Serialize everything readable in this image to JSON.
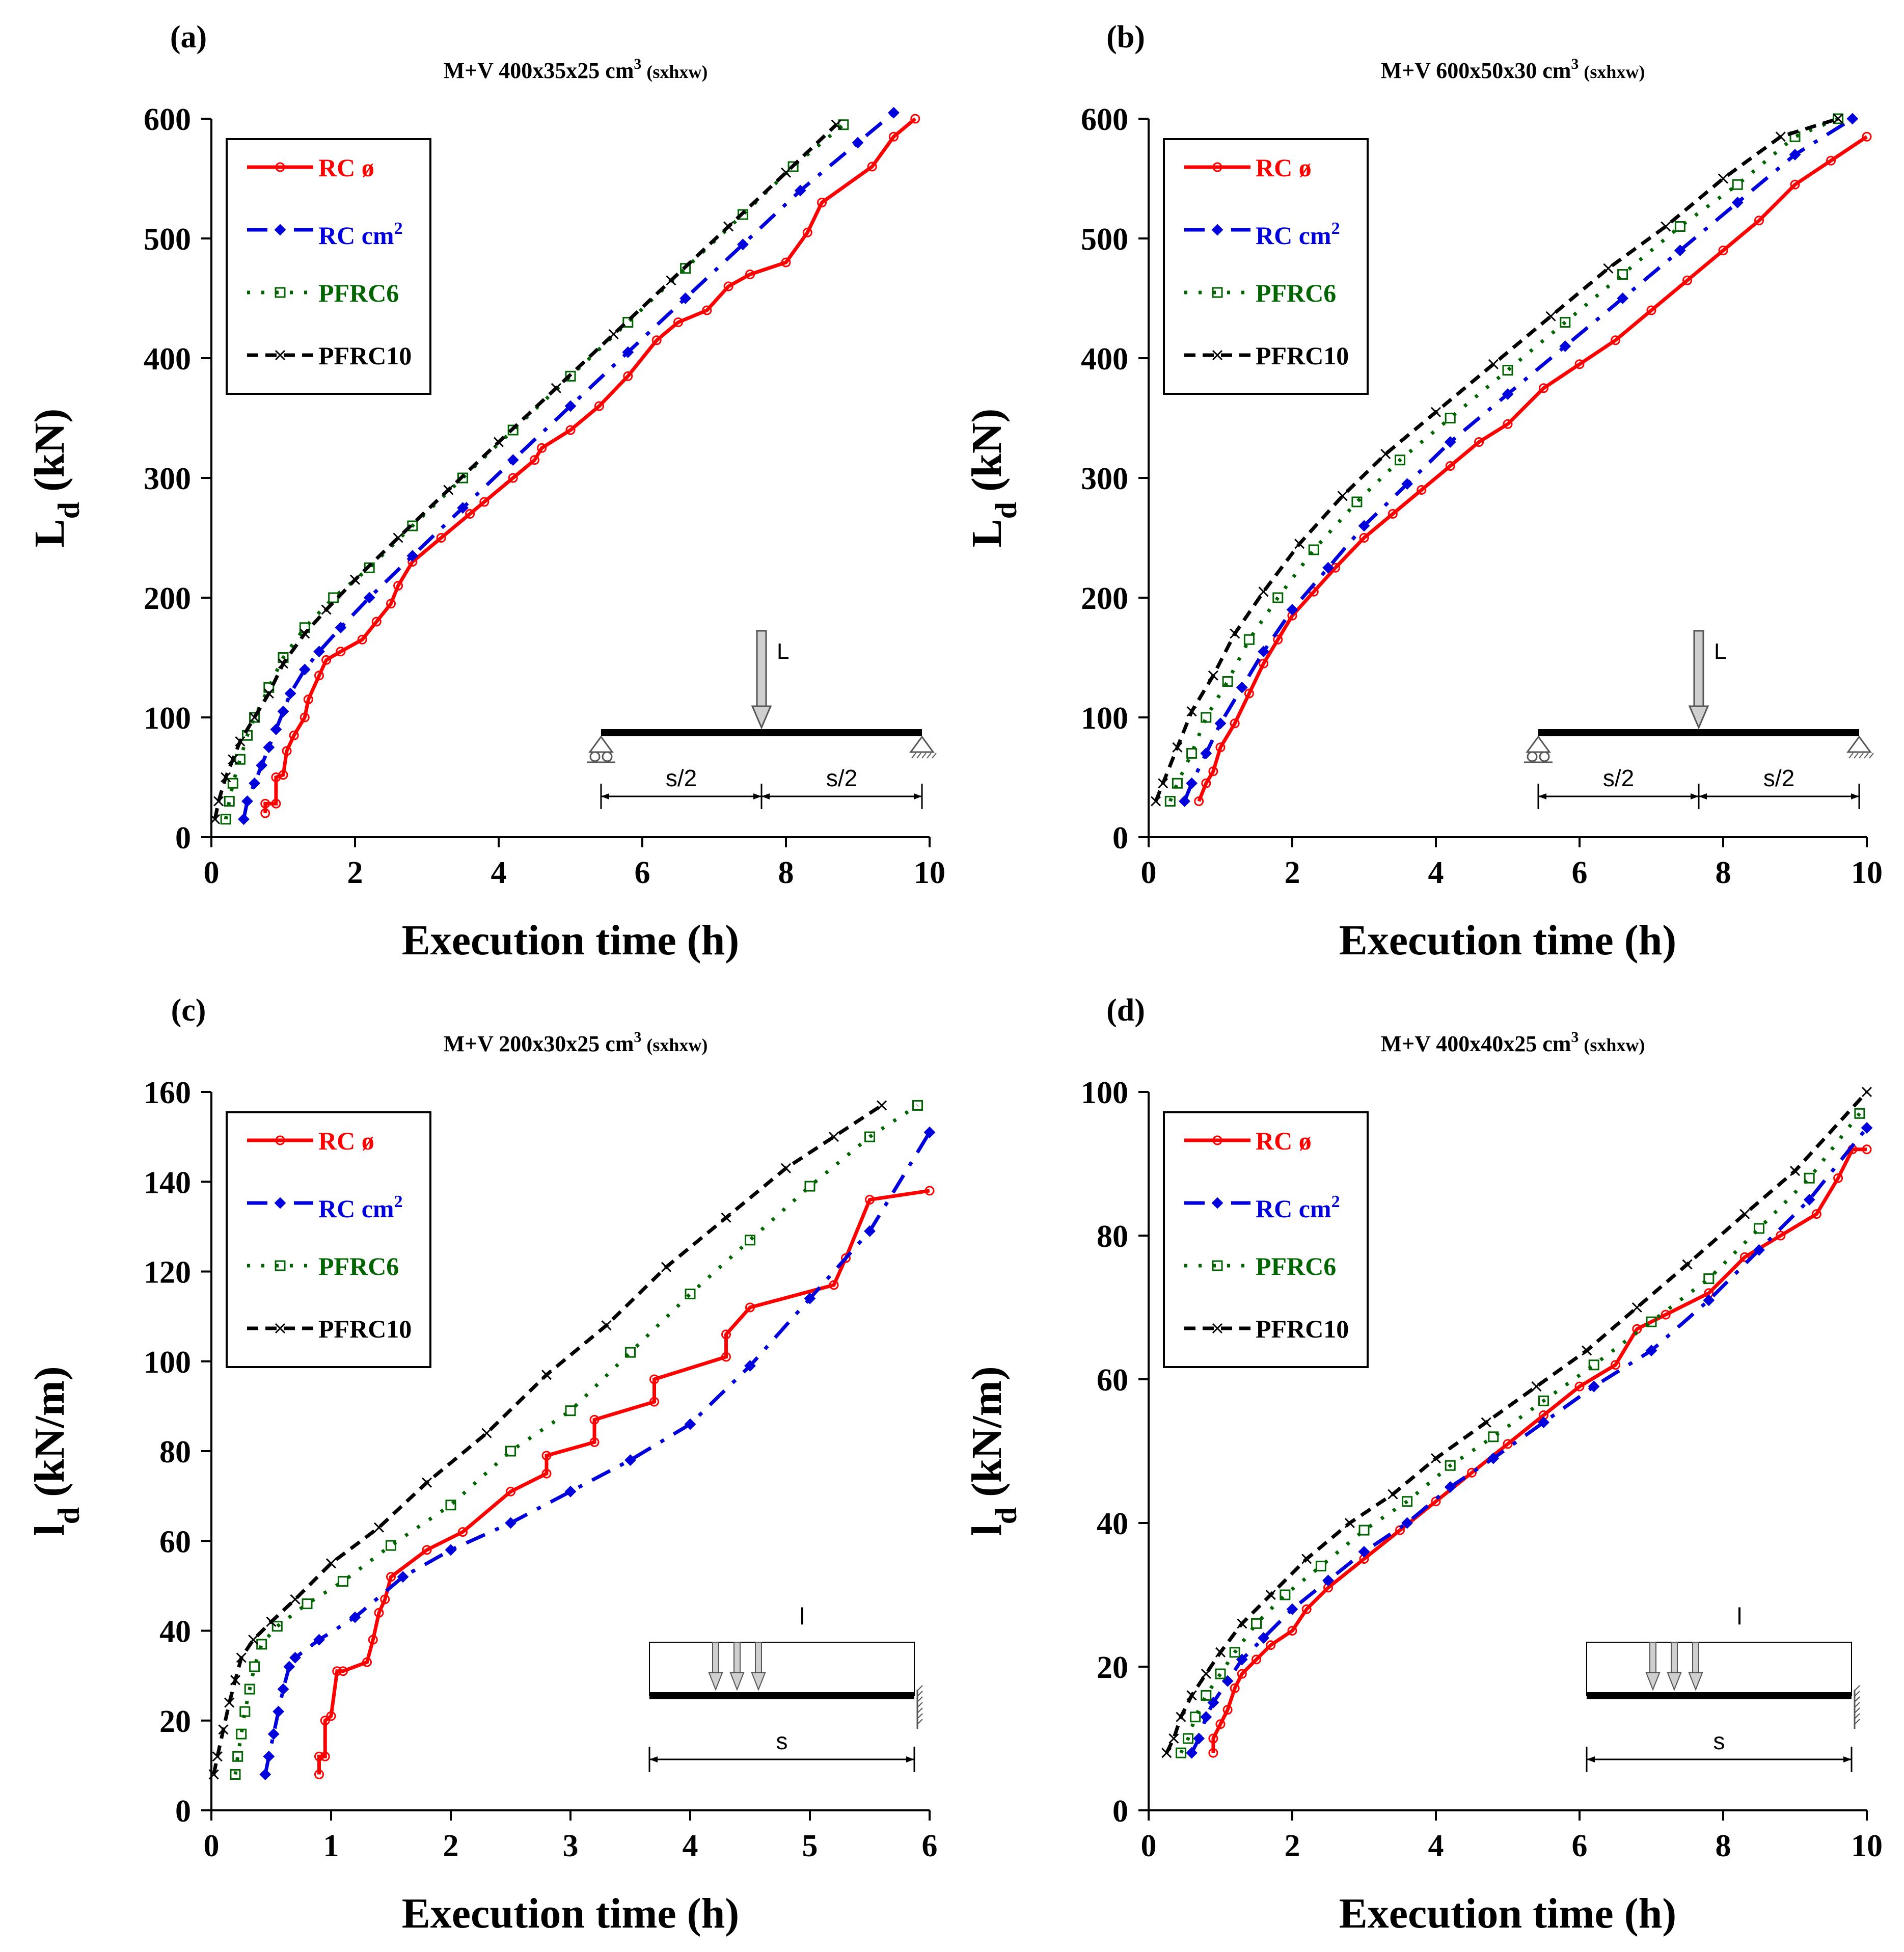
{
  "legend_styles": [
    {
      "key": "rc_phi",
      "color": "#ff0000",
      "dash": "",
      "marker": "circle"
    },
    {
      "key": "rc_cm2",
      "color": "#0000dd",
      "dash": "40,22,8,22",
      "marker": "diamond"
    },
    {
      "key": "pfrc6",
      "color": "#006400",
      "dash": "6,22",
      "marker": "square"
    },
    {
      "key": "pfrc10",
      "color": "#000000",
      "dash": "22,14",
      "marker": "x"
    }
  ],
  "diagrams": {
    "point_load": {
      "load_label": "L",
      "half_span_label": "s/2"
    },
    "distributed_load": {
      "load_label": "l",
      "span_label": "s"
    }
  },
  "chart_data": [
    {
      "panel": "(a)",
      "type": "line",
      "title": "M+V 400x35x25 cm",
      "title_sup": "3",
      "title_suffix": "(sxhxw)",
      "xlabel": "Execution time (h)",
      "ylabel": "L",
      "ylabel_sub": "d",
      "ylabel_unit": "(kN)",
      "xlim": [
        0,
        10
      ],
      "ylim": [
        0,
        600
      ],
      "xticks": [
        0,
        2,
        4,
        6,
        8,
        10
      ],
      "yticks": [
        0,
        100,
        200,
        300,
        400,
        500,
        600
      ],
      "diagram": "point_load",
      "legend": [
        "RC ø",
        "RC cm",
        "PFRC6",
        "PFRC10"
      ],
      "legend_sup": [
        "",
        "2",
        "",
        ""
      ],
      "series": [
        {
          "name": "RC ø",
          "x": [
            0.75,
            0.75,
            0.9,
            0.9,
            1.0,
            1.05,
            1.15,
            1.3,
            1.35,
            1.5,
            1.6,
            1.8,
            2.1,
            2.3,
            2.5,
            2.6,
            2.8,
            3.2,
            3.6,
            3.8,
            4.2,
            4.5,
            4.6,
            5.0,
            5.4,
            5.8,
            6.2,
            6.5,
            6.9,
            7.2,
            7.5,
            8.0,
            8.3,
            8.5,
            9.2,
            9.5,
            9.8
          ],
          "y": [
            20,
            28,
            28,
            50,
            52,
            72,
            85,
            100,
            115,
            135,
            148,
            155,
            165,
            180,
            195,
            210,
            230,
            250,
            270,
            280,
            300,
            315,
            325,
            340,
            360,
            385,
            415,
            430,
            440,
            460,
            470,
            480,
            505,
            530,
            560,
            585,
            600
          ]
        },
        {
          "name": "RC cm2",
          "x": [
            0.45,
            0.5,
            0.6,
            0.7,
            0.8,
            0.9,
            1.0,
            1.1,
            1.3,
            1.5,
            1.8,
            2.2,
            2.8,
            3.5,
            4.2,
            5.0,
            5.8,
            6.6,
            7.4,
            8.2,
            9.0,
            9.5
          ],
          "y": [
            15,
            30,
            45,
            60,
            75,
            90,
            105,
            120,
            140,
            155,
            175,
            200,
            235,
            275,
            315,
            360,
            405,
            450,
            495,
            540,
            580,
            605
          ]
        },
        {
          "name": "PFRC6",
          "x": [
            0.2,
            0.25,
            0.3,
            0.4,
            0.5,
            0.6,
            0.8,
            1.0,
            1.3,
            1.7,
            2.2,
            2.8,
            3.5,
            4.2,
            5.0,
            5.8,
            6.6,
            7.4,
            8.1,
            8.8
          ],
          "y": [
            15,
            30,
            45,
            65,
            85,
            100,
            125,
            150,
            175,
            200,
            225,
            260,
            300,
            340,
            385,
            430,
            475,
            520,
            560,
            595
          ]
        },
        {
          "name": "PFRC10",
          "x": [
            0.05,
            0.1,
            0.2,
            0.3,
            0.4,
            0.6,
            0.8,
            1.0,
            1.3,
            1.6,
            2.0,
            2.6,
            3.3,
            4.0,
            4.8,
            5.6,
            6.4,
            7.2,
            8.0,
            8.7
          ],
          "y": [
            15,
            30,
            50,
            65,
            80,
            100,
            120,
            145,
            170,
            190,
            215,
            250,
            290,
            330,
            375,
            420,
            465,
            510,
            555,
            595
          ]
        }
      ]
    },
    {
      "panel": "(b)",
      "type": "line",
      "title": "M+V 600x50x30 cm",
      "title_sup": "3",
      "title_suffix": "(sxhxw)",
      "xlabel": "Execution time (h)",
      "ylabel": "L",
      "ylabel_sub": "d",
      "ylabel_unit": "(kN)",
      "xlim": [
        0,
        10
      ],
      "ylim": [
        0,
        600
      ],
      "xticks": [
        0,
        2,
        4,
        6,
        8,
        10
      ],
      "yticks": [
        0,
        100,
        200,
        300,
        400,
        500,
        600
      ],
      "diagram": "point_load",
      "legend": [
        "RC ø",
        "RC cm",
        "PFRC6",
        "PFRC10"
      ],
      "legend_sup": [
        "",
        "2",
        "",
        ""
      ],
      "series": [
        {
          "name": "RC ø",
          "x": [
            0.7,
            0.8,
            0.9,
            1.0,
            1.2,
            1.4,
            1.6,
            1.8,
            2.0,
            2.3,
            2.6,
            3.0,
            3.4,
            3.8,
            4.2,
            4.6,
            5.0,
            5.5,
            6.0,
            6.5,
            7.0,
            7.5,
            8.0,
            8.5,
            9.0,
            9.5,
            10.0
          ],
          "y": [
            30,
            45,
            55,
            75,
            95,
            120,
            145,
            165,
            185,
            205,
            225,
            250,
            270,
            290,
            310,
            330,
            345,
            375,
            395,
            415,
            440,
            465,
            490,
            515,
            545,
            565,
            585
          ]
        },
        {
          "name": "RC cm2",
          "x": [
            0.5,
            0.6,
            0.8,
            1.0,
            1.3,
            1.6,
            2.0,
            2.5,
            3.0,
            3.6,
            4.2,
            5.0,
            5.8,
            6.6,
            7.4,
            8.2,
            9.0,
            9.8
          ],
          "y": [
            30,
            45,
            70,
            95,
            125,
            155,
            190,
            225,
            260,
            295,
            330,
            370,
            410,
            450,
            490,
            530,
            570,
            600
          ]
        },
        {
          "name": "PFRC6",
          "x": [
            0.3,
            0.4,
            0.6,
            0.8,
            1.1,
            1.4,
            1.8,
            2.3,
            2.9,
            3.5,
            4.2,
            5.0,
            5.8,
            6.6,
            7.4,
            8.2,
            9.0,
            9.6
          ],
          "y": [
            30,
            45,
            70,
            100,
            130,
            165,
            200,
            240,
            280,
            315,
            350,
            390,
            430,
            470,
            510,
            545,
            585,
            600
          ]
        },
        {
          "name": "PFRC10",
          "x": [
            0.1,
            0.2,
            0.4,
            0.6,
            0.9,
            1.2,
            1.6,
            2.1,
            2.7,
            3.3,
            4.0,
            4.8,
            5.6,
            6.4,
            7.2,
            8.0,
            8.8,
            9.6
          ],
          "y": [
            30,
            45,
            75,
            105,
            135,
            170,
            205,
            245,
            285,
            320,
            355,
            395,
            435,
            475,
            510,
            550,
            585,
            600
          ]
        }
      ]
    },
    {
      "panel": "(c)",
      "type": "line",
      "title": "M+V 200x30x25 cm",
      "title_sup": "3",
      "title_suffix": "(sxhxw)",
      "xlabel": "Execution time (h)",
      "ylabel": "l",
      "ylabel_sub": "d",
      "ylabel_unit": "(kN/m)",
      "xlim": [
        0,
        6
      ],
      "ylim": [
        0,
        160
      ],
      "xticks": [
        0,
        1,
        2,
        3,
        4,
        5,
        6
      ],
      "yticks": [
        0,
        20,
        40,
        60,
        80,
        100,
        120,
        140,
        160
      ],
      "diagram": "distributed_load",
      "legend": [
        "RC ø",
        "RC cm",
        "PFRC6",
        "PFRC10"
      ],
      "legend_sup": [
        "",
        "2",
        "",
        ""
      ],
      "series": [
        {
          "name": "RC ø",
          "x": [
            0.9,
            0.9,
            0.95,
            0.95,
            1.0,
            1.05,
            1.1,
            1.3,
            1.35,
            1.4,
            1.45,
            1.5,
            1.8,
            2.1,
            2.5,
            2.8,
            2.8,
            3.2,
            3.2,
            3.7,
            3.7,
            4.3,
            4.3,
            4.5,
            5.2,
            5.3,
            5.5,
            6.0
          ],
          "y": [
            8,
            12,
            12,
            20,
            21,
            31,
            31,
            33,
            38,
            44,
            47,
            52,
            58,
            62,
            71,
            75,
            79,
            82,
            87,
            91,
            96,
            101,
            106,
            112,
            117,
            123,
            136,
            138
          ]
        },
        {
          "name": "RC cm2",
          "x": [
            0.45,
            0.48,
            0.52,
            0.56,
            0.6,
            0.65,
            0.7,
            0.9,
            1.2,
            1.6,
            2.0,
            2.5,
            3.0,
            3.5,
            4.0,
            4.5,
            5.0,
            5.5,
            6.0
          ],
          "y": [
            8,
            12,
            17,
            22,
            27,
            32,
            34,
            38,
            43,
            52,
            58,
            64,
            71,
            78,
            86,
            99,
            114,
            129,
            151
          ]
        },
        {
          "name": "PFRC6",
          "x": [
            0.2,
            0.22,
            0.25,
            0.28,
            0.32,
            0.36,
            0.42,
            0.55,
            0.8,
            1.1,
            1.5,
            2.0,
            2.5,
            3.0,
            3.5,
            4.0,
            4.5,
            5.0,
            5.5,
            5.9
          ],
          "y": [
            8,
            12,
            17,
            22,
            27,
            32,
            37,
            41,
            46,
            51,
            59,
            68,
            80,
            89,
            102,
            115,
            127,
            139,
            150,
            157
          ]
        },
        {
          "name": "PFRC10",
          "x": [
            0.02,
            0.05,
            0.1,
            0.15,
            0.2,
            0.25,
            0.35,
            0.5,
            0.7,
            1.0,
            1.4,
            1.8,
            2.3,
            2.8,
            3.3,
            3.8,
            4.3,
            4.8,
            5.2,
            5.6
          ],
          "y": [
            8,
            12,
            18,
            24,
            29,
            34,
            38,
            42,
            47,
            55,
            63,
            73,
            84,
            97,
            108,
            121,
            132,
            143,
            150,
            157
          ]
        }
      ]
    },
    {
      "panel": "(d)",
      "type": "line",
      "title": "M+V 400x40x25 cm",
      "title_sup": "3",
      "title_suffix": "(sxhxw)",
      "xlabel": "Execution time (h)",
      "ylabel": "l",
      "ylabel_sub": "d",
      "ylabel_unit": "(kN/m)",
      "xlim": [
        0,
        10
      ],
      "ylim": [
        0,
        100
      ],
      "xticks": [
        0,
        2,
        4,
        6,
        8,
        10
      ],
      "yticks": [
        0,
        20,
        40,
        60,
        80,
        100
      ],
      "diagram": "distributed_load",
      "legend": [
        "RC ø",
        "RC cm",
        "PFRC6",
        "PFRC10"
      ],
      "legend_sup": [
        "",
        "2",
        "",
        ""
      ],
      "series": [
        {
          "name": "RC ø",
          "x": [
            0.9,
            0.9,
            1.0,
            1.1,
            1.2,
            1.3,
            1.5,
            1.7,
            2.0,
            2.2,
            2.5,
            3.0,
            3.5,
            4.0,
            4.5,
            5.0,
            5.5,
            6.0,
            6.5,
            6.8,
            7.2,
            7.8,
            8.3,
            8.8,
            9.3,
            9.6,
            9.8,
            10.0
          ],
          "y": [
            8,
            10,
            12,
            14,
            17,
            19,
            21,
            23,
            25,
            28,
            31,
            35,
            39,
            43,
            47,
            51,
            55,
            59,
            62,
            67,
            69,
            72,
            77,
            80,
            83,
            88,
            92,
            92
          ]
        },
        {
          "name": "RC cm2",
          "x": [
            0.6,
            0.7,
            0.8,
            0.9,
            1.1,
            1.3,
            1.6,
            2.0,
            2.5,
            3.0,
            3.6,
            4.2,
            4.8,
            5.5,
            6.2,
            7.0,
            7.8,
            8.5,
            9.2,
            10.0
          ],
          "y": [
            8,
            10,
            13,
            15,
            18,
            21,
            24,
            28,
            32,
            36,
            40,
            45,
            49,
            54,
            59,
            64,
            71,
            78,
            85,
            95
          ]
        },
        {
          "name": "PFRC6",
          "x": [
            0.45,
            0.55,
            0.65,
            0.8,
            1.0,
            1.2,
            1.5,
            1.9,
            2.4,
            3.0,
            3.6,
            4.2,
            4.8,
            5.5,
            6.2,
            7.0,
            7.8,
            8.5,
            9.2,
            9.9
          ],
          "y": [
            8,
            10,
            13,
            16,
            19,
            22,
            26,
            30,
            34,
            39,
            43,
            48,
            52,
            57,
            62,
            68,
            74,
            81,
            88,
            97
          ]
        },
        {
          "name": "PFRC10",
          "x": [
            0.25,
            0.35,
            0.45,
            0.6,
            0.8,
            1.0,
            1.3,
            1.7,
            2.2,
            2.8,
            3.4,
            4.0,
            4.7,
            5.4,
            6.1,
            6.8,
            7.5,
            8.3,
            9.0,
            10.0
          ],
          "y": [
            8,
            10,
            13,
            16,
            19,
            22,
            26,
            30,
            35,
            40,
            44,
            49,
            54,
            59,
            64,
            70,
            76,
            83,
            89,
            100
          ]
        }
      ]
    }
  ]
}
